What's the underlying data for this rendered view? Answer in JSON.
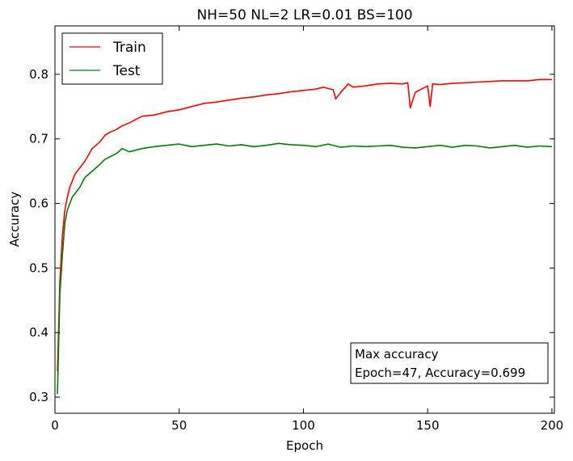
{
  "chart_data": {
    "type": "line",
    "title": "NH=50 NL=2 LR=0.01 BS=100",
    "xlabel": "Epoch",
    "ylabel": "Accuracy",
    "xlim": [
      0,
      201
    ],
    "ylim": [
      0.275,
      0.875
    ],
    "xticks": [
      0,
      50,
      100,
      150,
      200
    ],
    "yticks": [
      0.3,
      0.4,
      0.5,
      0.6,
      0.7,
      0.8
    ],
    "xtick_labels": [
      "0",
      "50",
      "100",
      "150",
      "200"
    ],
    "ytick_labels": [
      "0.3",
      "0.4",
      "0.5",
      "0.6",
      "0.7",
      "0.8"
    ],
    "grid": false,
    "legend_position": "top-left",
    "series": [
      {
        "name": "Train",
        "color": "#ff0000",
        "x": [
          1,
          2,
          3,
          4,
          5,
          6,
          7,
          8,
          10,
          12,
          15,
          18,
          20,
          22,
          25,
          27,
          30,
          35,
          40,
          45,
          50,
          55,
          60,
          65,
          70,
          75,
          80,
          85,
          90,
          95,
          100,
          105,
          108,
          110,
          112,
          113,
          115,
          118,
          120,
          125,
          130,
          135,
          140,
          142,
          143,
          145,
          148,
          150,
          151,
          152,
          155,
          160,
          165,
          170,
          175,
          180,
          185,
          190,
          195,
          200
        ],
        "y": [
          0.34,
          0.48,
          0.55,
          0.59,
          0.61,
          0.625,
          0.635,
          0.645,
          0.655,
          0.665,
          0.685,
          0.695,
          0.705,
          0.71,
          0.715,
          0.72,
          0.725,
          0.735,
          0.737,
          0.742,
          0.745,
          0.75,
          0.755,
          0.757,
          0.76,
          0.763,
          0.765,
          0.768,
          0.77,
          0.773,
          0.775,
          0.777,
          0.78,
          0.778,
          0.776,
          0.762,
          0.772,
          0.785,
          0.78,
          0.782,
          0.785,
          0.786,
          0.785,
          0.787,
          0.748,
          0.772,
          0.778,
          0.782,
          0.75,
          0.785,
          0.784,
          0.786,
          0.787,
          0.788,
          0.789,
          0.79,
          0.79,
          0.79,
          0.792,
          0.792
        ]
      },
      {
        "name": "Test",
        "color": "#007f00",
        "x": [
          1,
          2,
          3,
          4,
          5,
          6,
          7,
          8,
          10,
          12,
          15,
          18,
          20,
          22,
          25,
          27,
          30,
          35,
          40,
          45,
          50,
          55,
          60,
          65,
          70,
          75,
          80,
          85,
          90,
          95,
          100,
          105,
          110,
          115,
          120,
          125,
          130,
          135,
          140,
          145,
          150,
          155,
          160,
          165,
          170,
          175,
          180,
          185,
          190,
          195,
          200
        ],
        "y": [
          0.305,
          0.46,
          0.52,
          0.57,
          0.59,
          0.6,
          0.61,
          0.615,
          0.625,
          0.64,
          0.65,
          0.66,
          0.668,
          0.672,
          0.678,
          0.685,
          0.68,
          0.685,
          0.688,
          0.69,
          0.692,
          0.688,
          0.69,
          0.692,
          0.689,
          0.691,
          0.688,
          0.69,
          0.693,
          0.691,
          0.69,
          0.688,
          0.692,
          0.687,
          0.689,
          0.688,
          0.689,
          0.69,
          0.687,
          0.686,
          0.688,
          0.69,
          0.687,
          0.69,
          0.689,
          0.686,
          0.688,
          0.69,
          0.687,
          0.689,
          0.688
        ]
      }
    ],
    "annotation": {
      "line1": "Max accuracy",
      "line2": "Epoch=47, Accuracy=0.699"
    }
  }
}
